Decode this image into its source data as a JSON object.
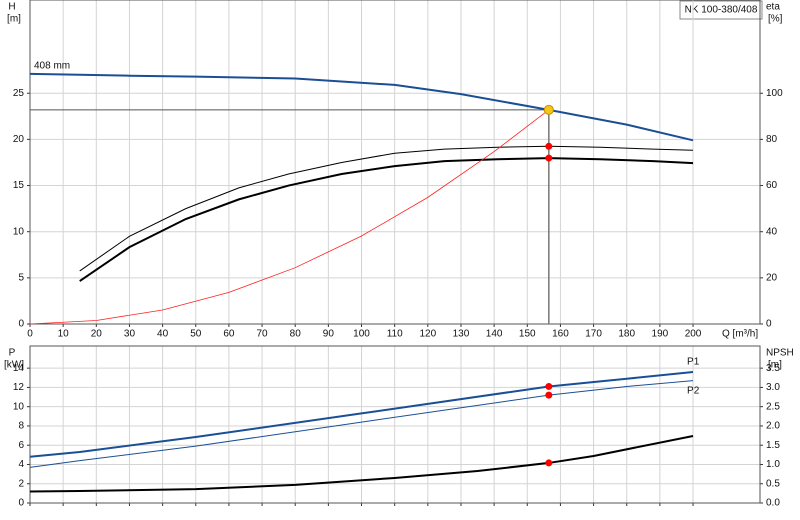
{
  "chart_data": [
    {
      "type": "line",
      "title": "NK 100-380/408",
      "ylabel": "H",
      "yunit": "[m]",
      "y2label": "eta",
      "y2unit": "[%]",
      "xlabel": "Q [m³/h]",
      "xlim": [
        0,
        220.2
      ],
      "xticks": [
        0,
        10,
        20,
        30,
        40,
        50,
        60,
        70,
        80,
        90,
        100,
        110,
        120,
        130,
        140,
        150,
        160,
        170,
        180,
        190,
        200
      ],
      "ylim": [
        0,
        35.1
      ],
      "yticks": [
        0,
        5,
        10,
        15,
        20,
        25
      ],
      "y2lim": [
        0,
        140.4
      ],
      "y2ticks": [
        0,
        20,
        40,
        60,
        80,
        100
      ],
      "grid": true,
      "xtick_labels": true,
      "crosshair": true,
      "series": [
        {
          "name": "408 mm",
          "color": "#1a4f95",
          "width": 2,
          "x": [
            0,
            15,
            30,
            50,
            80,
            110,
            130,
            156.5,
            180,
            200
          ],
          "values": [
            27.1,
            27.0,
            26.9,
            26.8,
            26.6,
            25.9,
            24.9,
            23.2,
            21.6,
            19.9
          ]
        },
        {
          "color": "#000000",
          "width": 1,
          "axis": "y2",
          "x": [
            15,
            30,
            47,
            63,
            78,
            94,
            110,
            125,
            141,
            156.5,
            172,
            188,
            200
          ],
          "values": [
            23,
            38,
            50,
            59,
            65,
            70,
            74,
            75.8,
            76.6,
            77,
            76.6,
            75.8,
            75.3
          ]
        },
        {
          "color": "#000000",
          "width": 2,
          "axis": "y2",
          "x": [
            15,
            30,
            47,
            63,
            78,
            94,
            110,
            125,
            141,
            156.5,
            172,
            188,
            200
          ],
          "values": [
            18.6,
            33.3,
            45.5,
            54,
            60,
            65,
            68.4,
            70.6,
            71.4,
            71.9,
            71.4,
            70.6,
            69.7
          ]
        },
        {
          "color": "#ff2020",
          "width": 0.8,
          "x": [
            0,
            20,
            40,
            60,
            80,
            100,
            120,
            140,
            156.5
          ],
          "values": [
            0,
            0.38,
            1.52,
            3.43,
            6.1,
            9.53,
            13.72,
            18.68,
            23.2
          ]
        }
      ],
      "points": [
        {
          "x": 156.5,
          "y": 23.2,
          "color": "#f5c518"
        },
        {
          "x": 156.5,
          "y": 77,
          "axis": "y2",
          "color": "#ff0000"
        },
        {
          "x": 156.5,
          "y": 71.9,
          "axis": "y2",
          "color": "#ff0000"
        }
      ]
    },
    {
      "type": "line",
      "ylabel": "P",
      "yunit": "[kW]",
      "y2label": "NPSH",
      "y2unit": "[m]",
      "xlim": [
        0,
        220.2
      ],
      "xticks": [
        0,
        10,
        20,
        30,
        40,
        50,
        60,
        70,
        80,
        90,
        100,
        110,
        120,
        130,
        140,
        150,
        160,
        170,
        180,
        190,
        200
      ],
      "ylim": [
        0,
        16.3
      ],
      "yticks": [
        0,
        2,
        4,
        6,
        8,
        10,
        12,
        14
      ],
      "y2lim": [
        0,
        4.075
      ],
      "y2ticks": [
        {
          "value": 0,
          "label": "0.0"
        },
        0.5,
        {
          "value": 1,
          "label": "1.0"
        },
        1.5,
        {
          "value": 2,
          "label": "2.0"
        },
        2.5,
        {
          "value": 3,
          "label": "3.0"
        },
        3.5
      ],
      "grid": true,
      "xtick_labels": false,
      "crosshair": false,
      "series": [
        {
          "name": "P1",
          "color": "#1a4f95",
          "width": 2,
          "x": [
            0,
            15,
            50,
            100,
            156.5,
            180,
            200
          ],
          "values": [
            4.8,
            5.3,
            6.85,
            9.3,
            12.1,
            12.9,
            13.6
          ]
        },
        {
          "name": "P2",
          "color": "#1a4f95",
          "width": 1,
          "x": [
            0,
            15,
            50,
            100,
            156.5,
            180,
            200
          ],
          "values": [
            3.7,
            4.4,
            5.9,
            8.4,
            11.2,
            12.1,
            12.7
          ]
        },
        {
          "color": "#000000",
          "width": 2,
          "axis": "y2",
          "x": [
            0,
            15,
            50,
            80,
            110,
            135,
            156.5,
            170,
            200
          ],
          "values": [
            0.3,
            0.31,
            0.36,
            0.47,
            0.65,
            0.83,
            1.04,
            1.22,
            1.74
          ]
        }
      ],
      "points": [
        {
          "x": 156.5,
          "y": 12.1,
          "color": "#ff0000"
        },
        {
          "x": 156.5,
          "y": 11.2,
          "color": "#ff0000"
        },
        {
          "x": 156.5,
          "y": 1.04,
          "axis": "y2",
          "color": "#ff0000"
        }
      ]
    }
  ]
}
